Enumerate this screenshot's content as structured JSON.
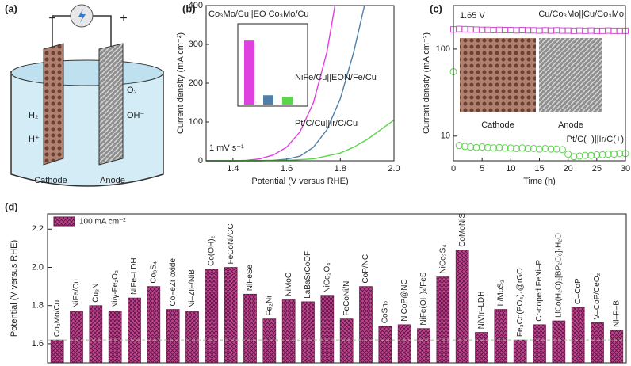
{
  "diagram": {
    "panel_label": "(a)",
    "minus": "−",
    "plus": "+",
    "h2": "H₂",
    "h_plus": "H⁺",
    "o2": "O₂",
    "oh_minus": "OH⁻",
    "cathode": "Cathode",
    "anode": "Anode"
  },
  "chart_data": [
    {
      "type": "line",
      "panel_label": "(b)",
      "x_label": "Potential (V versus RHE)",
      "y_label": "Current density (mA cm⁻²)",
      "annotation": "1 mV s⁻¹",
      "xlim": [
        1.3,
        2.0
      ],
      "xticks": [
        1.4,
        1.6,
        1.8,
        {
          "value": 2,
          "label": "2.0"
        }
      ],
      "ylim": [
        0,
        400
      ],
      "yticks": [
        0,
        100,
        200,
        300,
        400
      ],
      "series": [
        {
          "name": "Co₃Mo/Cu||EO Co₃Mo/Cu",
          "color": "#e040e0",
          "x": [
            1.3,
            1.4,
            1.45,
            1.5,
            1.55,
            1.6,
            1.65,
            1.7,
            1.75,
            1.78
          ],
          "values": [
            0,
            0,
            1,
            5,
            15,
            35,
            75,
            150,
            280,
            400
          ],
          "inset_value": 165
        },
        {
          "name": "NiFe/Cu||EON/Fe/Cu",
          "color": "#4f7fa8",
          "x": [
            1.3,
            1.5,
            1.55,
            1.6,
            1.65,
            1.7,
            1.75,
            1.8,
            1.85,
            1.89
          ],
          "values": [
            0,
            0,
            1,
            4,
            12,
            35,
            80,
            160,
            280,
            400
          ],
          "inset_value": 24
        },
        {
          "name": "Pt/C/Cu||Ir/C/Cu",
          "color": "#5ad64a",
          "x": [
            1.3,
            1.6,
            1.7,
            1.8,
            1.85,
            1.9,
            1.95,
            2.0
          ],
          "values": [
            0,
            1,
            5,
            20,
            35,
            55,
            80,
            105
          ],
          "inset_value": 20
        }
      ]
    },
    {
      "type": "scatter",
      "panel_label": "(c)",
      "x_label": "Time (h)",
      "y_label": "Current density (mA cm⁻²)",
      "annotation": "1.65 V",
      "image_labels": [
        "Cathode",
        "Anode"
      ],
      "xlim": [
        0,
        30
      ],
      "xticks": [
        0,
        5,
        10,
        15,
        20,
        25,
        30
      ],
      "ylim": [
        5.2,
        316
      ],
      "yticks": [
        10,
        100
      ],
      "log_y": true,
      "x": [
        0,
        1,
        2,
        3,
        4,
        5,
        6,
        7,
        8,
        9,
        10,
        11,
        12,
        13,
        14,
        15,
        16,
        17,
        18,
        19,
        20,
        21,
        22,
        23,
        24,
        25,
        26,
        27,
        28,
        29,
        30
      ],
      "series": [
        {
          "name": "Cu/Co₃Mo||Cu/Co₃Mo",
          "color": "#d050d0",
          "marker": "square",
          "values": [
            168,
            170,
            169,
            168,
            167,
            166,
            166,
            165,
            166,
            165,
            165,
            164,
            165,
            164,
            164,
            163,
            164,
            163,
            164,
            163,
            163,
            162,
            163,
            162,
            163,
            162,
            162,
            163,
            162,
            162,
            162
          ]
        },
        {
          "name": "Pt/C(−)||Ir/C(+)",
          "color": "#5ad64a",
          "marker": "circle",
          "values": [
            55,
            7.8,
            7.6,
            7.5,
            7.4,
            7.5,
            7.4,
            7.3,
            7.4,
            7.3,
            7.3,
            7.2,
            7.3,
            7.2,
            7.2,
            7.1,
            7.2,
            7.1,
            7.1,
            7.0,
            6.2,
            5.8,
            5.9,
            6.0,
            6.0,
            6.1,
            6.1,
            6.2,
            6.2,
            6.3,
            6.3
          ]
        }
      ]
    },
    {
      "type": "bar",
      "panel_label": "(d)",
      "y_label": "Potential (V versus RHE)",
      "legend": "100 mA cm⁻²",
      "color": "#c0448f",
      "highlight_color": "#d050d0",
      "reference_line": 1.62,
      "reference_color": "#8fd080",
      "ylim": [
        1.5,
        2.28
      ],
      "yticks": [
        1.6,
        1.8,
        {
          "value": 2,
          "label": "2.0"
        },
        2.2
      ],
      "categories": [
        "Co₃Mo/Cu",
        "NiFe/Cu",
        "Cu₃N",
        "Ni/γ-Fe₂O₃",
        "NiFe–LDH",
        "Co₃S₄",
        "CoFeZr oxide",
        "Ni–ZIF/NiB",
        "Co(OH)₂",
        "FeCoNi/CC",
        "NiFeSe",
        "Fe₂Ni",
        "NiMoO",
        "LaBaSrCoOF",
        "NiCo₂O₄",
        "FeCoNi/Ni",
        "CoP/NC",
        "CoSn₂",
        "NiCoP@NC",
        "NiFe(OH)ₓ/FeS",
        "NiCo₂S₄",
        "CoMoNiS",
        "NiVIr–LDH",
        "Ir/MoS₂",
        "Fe₃Co(PO₄)₄@rGO",
        "Cr-doped FeNi–P",
        "LiCo(H₂O)₂[BP₂O₈]·H₂O",
        "O–CoP",
        "V–CoP/CeO₂",
        "Ni–P–B"
      ],
      "values": [
        1.62,
        1.77,
        1.8,
        1.77,
        1.84,
        1.9,
        1.78,
        1.77,
        1.99,
        2.0,
        1.86,
        1.73,
        1.83,
        1.82,
        1.85,
        1.73,
        1.9,
        1.69,
        1.7,
        1.68,
        1.95,
        2.09,
        1.66,
        1.78,
        1.62,
        1.7,
        1.72,
        1.79,
        1.71,
        1.67
      ]
    }
  ]
}
